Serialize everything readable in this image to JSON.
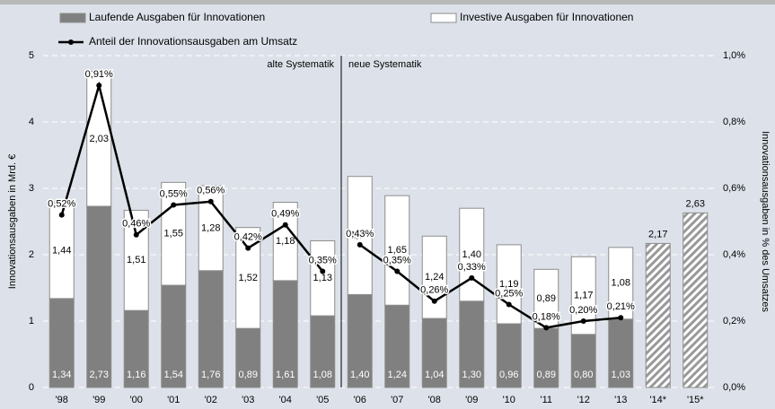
{
  "chart_data": {
    "type": "bar_line",
    "y_axis_label": "Innovationsausgaben in Mrd. €",
    "y2_axis_label": "Innovationsausgaben in % des Umsatzes",
    "categories": [
      "'98",
      "'99",
      "'00",
      "'01",
      "'02",
      "'03",
      "'04",
      "'05",
      "'06",
      "'07",
      "'08",
      "'09",
      "'10",
      "'11",
      "'12",
      "'13",
      "'14*",
      "'15*"
    ],
    "ylim": [
      0,
      5
    ],
    "yticks": [
      0,
      1,
      2,
      3,
      4,
      5
    ],
    "y2lim": [
      0,
      1.0
    ],
    "y2ticks": [
      {
        "value": 0,
        "label": "0,0%"
      },
      {
        "value": 0.2,
        "label": "0,2%"
      },
      {
        "value": 0.4,
        "label": "0,4%"
      },
      {
        "value": 0.6,
        "label": "0,6%"
      },
      {
        "value": 0.8,
        "label": "0,8%"
      },
      {
        "value": 1.0,
        "label": "1,0%"
      }
    ],
    "grid": true,
    "divider": {
      "after": "'05",
      "labels": [
        "alte Systematik",
        "neue Systematik"
      ]
    },
    "series": [
      {
        "name": "Laufende Ausgaben für Innovationen",
        "kind": "bar",
        "color": "#808080",
        "values": [
          1.34,
          2.73,
          1.16,
          1.54,
          1.76,
          0.89,
          1.61,
          1.08,
          1.4,
          1.24,
          1.04,
          1.3,
          0.96,
          0.89,
          0.8,
          1.03,
          null,
          null
        ],
        "value_labels": [
          "1,34",
          "2,73",
          "1,16",
          "1,54",
          "1,76",
          "0,89",
          "1,61",
          "1,08",
          "1,40",
          "1,24",
          "1,04",
          "1,30",
          "0,96",
          "0,89",
          "0,80",
          "1,03",
          null,
          null
        ]
      },
      {
        "name": "Investive Ausgaben für Innovationen",
        "kind": "bar",
        "color": "#ffffff",
        "values": [
          1.44,
          2.03,
          1.51,
          1.55,
          1.28,
          1.52,
          1.18,
          1.13,
          1.78,
          1.65,
          1.24,
          1.4,
          1.19,
          0.89,
          1.17,
          1.08,
          null,
          null
        ],
        "value_labels": [
          "1,44",
          "2,03",
          "1,51",
          "1,55",
          "1,28",
          "1,52",
          "1,18",
          "1,13",
          "1,78",
          "1,65",
          "1,24",
          "1,40",
          "1,19",
          "0,89",
          "1,17",
          "1,08",
          null,
          null
        ]
      },
      {
        "kind": "bar",
        "pattern": "hatch",
        "color": "#999999",
        "values": [
          null,
          null,
          null,
          null,
          null,
          null,
          null,
          null,
          null,
          null,
          null,
          null,
          null,
          null,
          null,
          null,
          2.17,
          2.63
        ],
        "value_labels": [
          null,
          null,
          null,
          null,
          null,
          null,
          null,
          null,
          null,
          null,
          null,
          null,
          null,
          null,
          null,
          null,
          "2,17",
          "2,63"
        ]
      },
      {
        "name": "Anteil der Innovationsausgaben am Umsatz",
        "kind": "line",
        "axis": "y2",
        "color": "#000000",
        "values": [
          0.52,
          0.91,
          0.46,
          0.55,
          0.56,
          0.42,
          0.49,
          0.35,
          0.43,
          0.35,
          0.26,
          0.33,
          0.25,
          0.18,
          0.2,
          0.21,
          null,
          null
        ],
        "value_labels": [
          "0,52%",
          "0,91%",
          "0,46%",
          "0,55%",
          "0,56%",
          "0,42%",
          "0,49%",
          "0,35%",
          "0,43%",
          "0,35%",
          "0,26%",
          "0,33%",
          "0,25%",
          "0,18%",
          "0,20%",
          "0,21%",
          null,
          null
        ]
      }
    ]
  }
}
